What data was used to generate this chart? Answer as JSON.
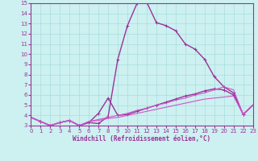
{
  "xlabel": "Windchill (Refroidissement éolien,°C)",
  "xlim": [
    0,
    23
  ],
  "ylim": [
    3,
    15
  ],
  "xticks": [
    0,
    1,
    2,
    3,
    4,
    5,
    6,
    7,
    8,
    9,
    10,
    11,
    12,
    13,
    14,
    15,
    16,
    17,
    18,
    19,
    20,
    21,
    22,
    23
  ],
  "yticks": [
    3,
    4,
    5,
    6,
    7,
    8,
    9,
    10,
    11,
    12,
    13,
    14,
    15
  ],
  "background_color": "#cdf0f0",
  "grid_color": "#a8dede",
  "curves": [
    {
      "x": [
        0,
        1,
        2,
        3,
        4,
        5,
        6,
        7,
        8,
        9,
        10,
        11,
        12,
        13,
        14,
        15,
        16,
        17,
        18,
        19,
        20,
        21,
        22,
        23
      ],
      "y": [
        3.8,
        3.4,
        3.0,
        3.3,
        3.5,
        3.0,
        3.3,
        3.2,
        3.9,
        9.5,
        12.8,
        15.0,
        15.1,
        13.1,
        12.8,
        12.3,
        11.0,
        10.5,
        9.5,
        7.8,
        6.8,
        6.2,
        4.1,
        5.0
      ],
      "color": "#993399",
      "marker": "+",
      "ms": 3.5,
      "lw": 1.0
    },
    {
      "x": [
        0,
        1,
        2,
        3,
        4,
        5,
        6,
        7,
        8,
        9,
        10,
        11,
        12,
        13,
        14,
        15,
        16,
        17,
        18,
        19,
        20,
        21,
        22,
        23
      ],
      "y": [
        3.8,
        3.4,
        3.0,
        3.3,
        3.5,
        3.0,
        3.3,
        4.2,
        5.7,
        4.0,
        4.1,
        4.4,
        4.7,
        5.0,
        5.3,
        5.6,
        5.9,
        6.1,
        6.4,
        6.6,
        6.5,
        6.0,
        4.1,
        5.0
      ],
      "color": "#993399",
      "marker": "+",
      "ms": 3.5,
      "lw": 1.0
    },
    {
      "x": [
        0,
        1,
        2,
        3,
        4,
        5,
        6,
        7,
        8,
        9,
        10,
        11,
        12,
        13,
        14,
        15,
        16,
        17,
        18,
        19,
        20,
        21,
        22,
        23
      ],
      "y": [
        3.8,
        3.4,
        3.0,
        3.3,
        3.5,
        3.0,
        3.4,
        3.6,
        3.8,
        4.0,
        4.2,
        4.5,
        4.7,
        5.0,
        5.2,
        5.5,
        5.7,
        6.0,
        6.2,
        6.5,
        6.8,
        6.5,
        4.1,
        5.0
      ],
      "color": "#cc55cc",
      "marker": null,
      "ms": 0,
      "lw": 0.8
    },
    {
      "x": [
        0,
        1,
        2,
        3,
        4,
        5,
        6,
        7,
        8,
        9,
        10,
        11,
        12,
        13,
        14,
        15,
        16,
        17,
        18,
        19,
        20,
        21,
        22,
        23
      ],
      "y": [
        3.8,
        3.4,
        3.0,
        3.3,
        3.5,
        3.0,
        3.4,
        3.5,
        3.7,
        3.8,
        4.0,
        4.2,
        4.4,
        4.6,
        4.8,
        5.0,
        5.2,
        5.4,
        5.6,
        5.7,
        5.8,
        5.9,
        4.1,
        5.0
      ],
      "color": "#cc55cc",
      "marker": null,
      "ms": 0,
      "lw": 0.8
    }
  ],
  "spine_color": "#993399",
  "tick_color": "#993399",
  "tick_labelsize": 5,
  "xlabel_fontsize": 5.5,
  "xlabel_color": "#993399"
}
